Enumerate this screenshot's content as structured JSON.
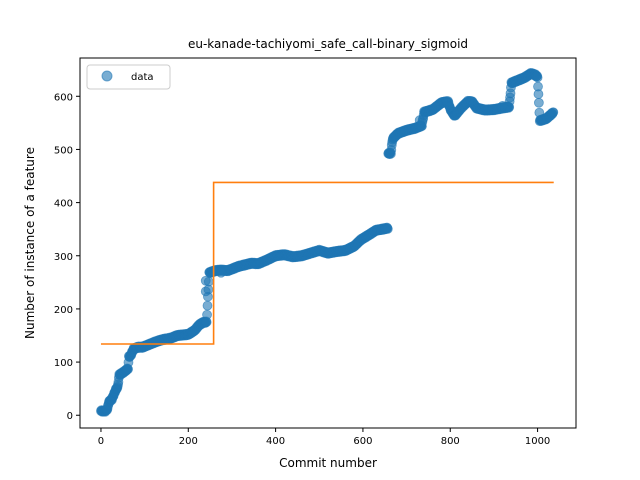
{
  "chart_data": {
    "type": "scatter",
    "title": "eu-kanade-tachiyomi_safe_call-binary_sigmoid",
    "xlabel": "Commit number",
    "ylabel": "Number of instance of a feature",
    "xlim": [
      -48,
      1088
    ],
    "ylim": [
      -24,
      672
    ],
    "xticks": [
      0,
      200,
      400,
      600,
      800,
      1000
    ],
    "yticks": [
      0,
      100,
      200,
      300,
      400,
      500,
      600
    ],
    "grid": false,
    "legend": {
      "position": "top-left",
      "entries": [
        "data"
      ]
    },
    "colors": {
      "data": "#1f77b4",
      "fit": "#ff7f0e"
    },
    "series": [
      {
        "name": "data",
        "kind": "scatter",
        "anchors": [
          [
            0,
            8
          ],
          [
            10,
            8
          ],
          [
            15,
            12
          ],
          [
            18,
            25
          ],
          [
            25,
            30
          ],
          [
            30,
            40
          ],
          [
            35,
            50
          ],
          [
            38,
            52
          ],
          [
            42,
            76
          ],
          [
            50,
            80
          ],
          [
            58,
            85
          ],
          [
            62,
            88
          ],
          [
            64,
            110
          ],
          [
            68,
            112
          ],
          [
            72,
            120
          ],
          [
            75,
            125
          ],
          [
            85,
            128
          ],
          [
            95,
            128
          ],
          [
            110,
            133
          ],
          [
            125,
            138
          ],
          [
            140,
            142
          ],
          [
            160,
            145
          ],
          [
            175,
            150
          ],
          [
            200,
            152
          ],
          [
            215,
            160
          ],
          [
            225,
            170
          ],
          [
            235,
            175
          ],
          [
            242,
            175
          ],
          [
            248,
            268
          ],
          [
            262,
            272
          ],
          [
            275,
            273
          ],
          [
            290,
            272
          ],
          [
            300,
            275
          ],
          [
            315,
            280
          ],
          [
            330,
            283
          ],
          [
            345,
            286
          ],
          [
            360,
            285
          ],
          [
            380,
            292
          ],
          [
            400,
            300
          ],
          [
            420,
            302
          ],
          [
            440,
            298
          ],
          [
            460,
            300
          ],
          [
            480,
            305
          ],
          [
            500,
            310
          ],
          [
            520,
            305
          ],
          [
            540,
            308
          ],
          [
            560,
            310
          ],
          [
            580,
            318
          ],
          [
            595,
            330
          ],
          [
            615,
            340
          ],
          [
            630,
            348
          ],
          [
            645,
            350
          ],
          [
            657,
            352
          ],
          [
            658,
            492
          ],
          [
            664,
            493
          ],
          [
            668,
            520
          ],
          [
            680,
            530
          ],
          [
            700,
            536
          ],
          [
            720,
            540
          ],
          [
            735,
            545
          ],
          [
            740,
            570
          ],
          [
            760,
            575
          ],
          [
            780,
            588
          ],
          [
            795,
            590
          ],
          [
            800,
            576
          ],
          [
            810,
            563
          ],
          [
            825,
            578
          ],
          [
            840,
            590
          ],
          [
            850,
            590
          ],
          [
            860,
            578
          ],
          [
            880,
            574
          ],
          [
            900,
            575
          ],
          [
            920,
            578
          ],
          [
            935,
            580
          ],
          [
            940,
            625
          ],
          [
            955,
            630
          ],
          [
            970,
            635
          ],
          [
            985,
            643
          ],
          [
            995,
            640
          ],
          [
            1000,
            636
          ],
          [
            1005,
            554
          ],
          [
            1020,
            558
          ],
          [
            1030,
            565
          ],
          [
            1036,
            570
          ]
        ],
        "outliers": [
          [
            240,
            233
          ],
          [
            240,
            253
          ],
          [
            275,
            268
          ],
          [
            730,
            555
          ],
          [
            920,
            582
          ]
        ]
      },
      {
        "kind": "step",
        "points": [
          [
            0,
            134
          ],
          [
            258,
            134
          ],
          [
            258,
            438
          ],
          [
            1037,
            438
          ]
        ]
      }
    ]
  }
}
